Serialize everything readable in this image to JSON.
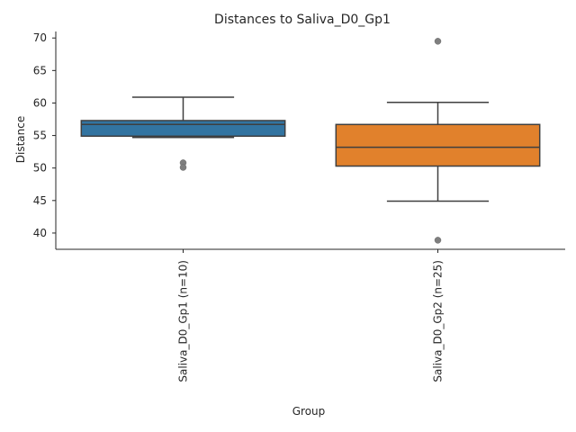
{
  "chart_data": {
    "type": "box",
    "title": "Distances to Saliva_D0_Gp1",
    "xlabel": "Group",
    "ylabel": "Distance",
    "ylim": [
      37.5,
      71
    ],
    "yticks": [
      40,
      45,
      50,
      55,
      60,
      65,
      70
    ],
    "grid": false,
    "categories": [
      "Saliva_D0_Gp1 (n=10)",
      "Saliva_D0_Gp2 (n=25)"
    ],
    "boxes": [
      {
        "name": "Saliva_D0_Gp1 (n=10)",
        "color": "#3274a1",
        "whisker_low": 54.7,
        "q1": 54.9,
        "median": 56.7,
        "q3": 57.3,
        "whisker_high": 60.9,
        "outliers": [
          50.8,
          50.1
        ]
      },
      {
        "name": "Saliva_D0_Gp2 (n=25)",
        "color": "#e1812c",
        "whisker_low": 44.9,
        "q1": 50.3,
        "median": 53.2,
        "q3": 56.7,
        "whisker_high": 60.1,
        "outliers": [
          69.5,
          38.9
        ]
      }
    ]
  }
}
